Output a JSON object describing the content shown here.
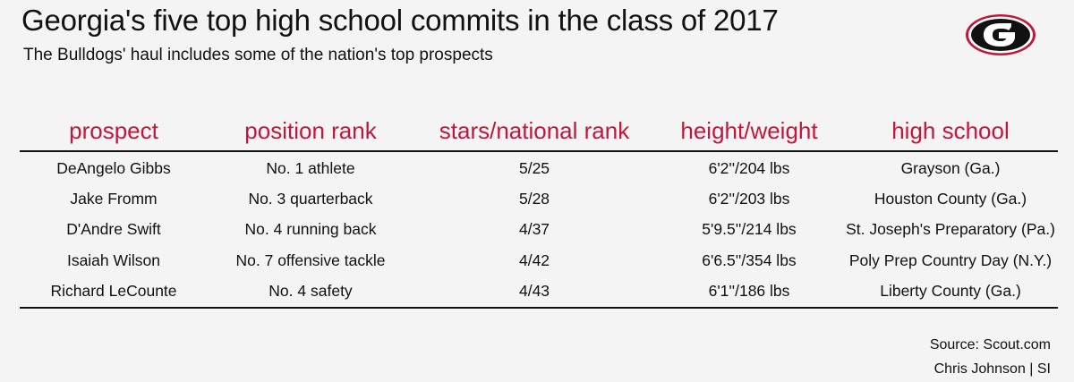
{
  "title": "Georgia's five top high school commits in the class of 2017",
  "subtitle": "The Bulldogs' haul includes some of the nation's top prospects",
  "logo": {
    "icon": "georgia-g-logo",
    "letter": "G",
    "colors": {
      "red": "#c2173b",
      "black": "#111111",
      "white": "#ffffff"
    }
  },
  "accent_color": "#c2173b",
  "chart_data": {
    "type": "table",
    "columns": [
      "prospect",
      "position rank",
      "stars/national rank",
      "height/weight",
      "high school"
    ],
    "rows": [
      [
        "DeAngelo Gibbs",
        "No. 1 athlete",
        "5/25",
        "6'2''/204 lbs",
        "Grayson (Ga.)"
      ],
      [
        "Jake Fromm",
        "No. 3 quarterback",
        "5/28",
        "6'2''/203 lbs",
        "Houston County (Ga.)"
      ],
      [
        "D'Andre Swift",
        "No. 4 running back",
        "4/37",
        "5'9.5''/214 lbs",
        "St. Joseph's Preparatory (Pa.)"
      ],
      [
        "Isaiah Wilson",
        "No. 7 offensive tackle",
        "4/42",
        "6'6.5''/354 lbs",
        "Poly Prep Country Day (N.Y.)"
      ],
      [
        "Richard LeCounte",
        "No. 4 safety",
        "4/43",
        "6'1''/186 lbs",
        "Liberty County (Ga.)"
      ]
    ]
  },
  "footer": {
    "source": "Source: Scout.com",
    "credit": "Chris Johnson | SI"
  }
}
